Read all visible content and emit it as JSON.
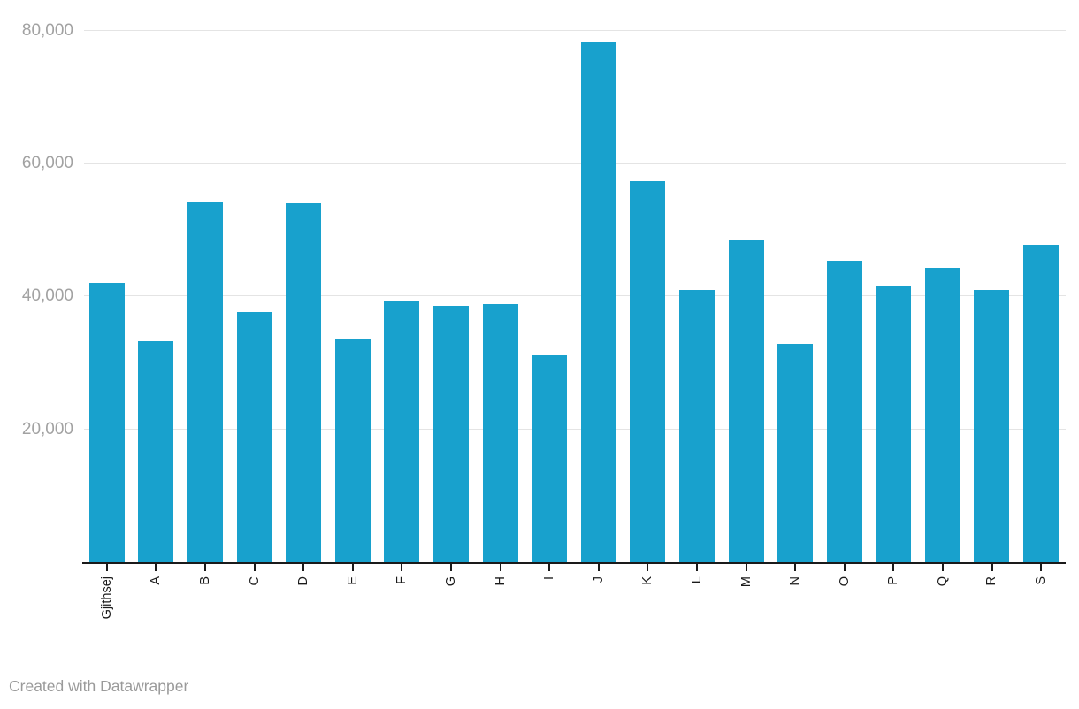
{
  "chart_data": {
    "type": "bar",
    "title": "",
    "categories": [
      "Gjithsej",
      "A",
      "B",
      "C",
      "D",
      "E",
      "F",
      "G",
      "H",
      "I",
      "J",
      "K",
      "L",
      "M",
      "N",
      "O",
      "P",
      "Q",
      "R",
      "S"
    ],
    "values": [
      42100,
      33200,
      54200,
      37600,
      54000,
      33500,
      39200,
      38600,
      38800,
      31100,
      78300,
      57300,
      41000,
      48600,
      32800,
      45400,
      41700,
      44300,
      41000,
      47700
    ],
    "xlabel": "",
    "ylabel": "",
    "ylim": [
      0,
      84600
    ],
    "yticks": [
      {
        "value": 20000,
        "label": "20,000"
      },
      {
        "value": 40000,
        "label": "40,000"
      },
      {
        "value": 60000,
        "label": "60,000"
      },
      {
        "value": 80000,
        "label": "80,000"
      }
    ],
    "grid": true,
    "legend": false,
    "bar_color": "#18a1cd",
    "gridline_color": "#e4e4e4",
    "axis_color": "#1a1a1a",
    "ytick_label_color": "#a2a2a2"
  },
  "footer": {
    "credit": "Created with Datawrapper"
  }
}
